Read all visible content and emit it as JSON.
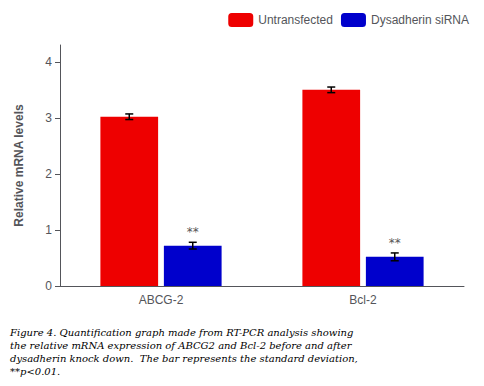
{
  "chart_data": {
    "type": "bar",
    "categories": [
      "ABCG-2",
      "Bcl-2"
    ],
    "series": [
      {
        "name": "Untransfected",
        "color": "#EE0000",
        "values": [
          3.02,
          3.5
        ],
        "errors": [
          0.05,
          0.05
        ]
      },
      {
        "name": "Dysadherin siRNA",
        "color": "#0000CC",
        "values": [
          0.72,
          0.52
        ],
        "errors": [
          0.06,
          0.07
        ],
        "annotations": [
          "**",
          "**"
        ]
      }
    ],
    "ylabel": "Relative mRNA levels",
    "ylim": [
      0,
      4.3
    ],
    "yticks": [
      0,
      1,
      2,
      3,
      4
    ],
    "grid": false,
    "legend": "upper right",
    "caption": [
      "Figure 4. Quantification graph made from RT-PCR analysis showing",
      "the relative mRNA expression of ABCG2 and Bcl-2 before and after",
      "dysadherin knock down.  The bar represents the standard deviation,",
      "**p<0.01."
    ]
  }
}
